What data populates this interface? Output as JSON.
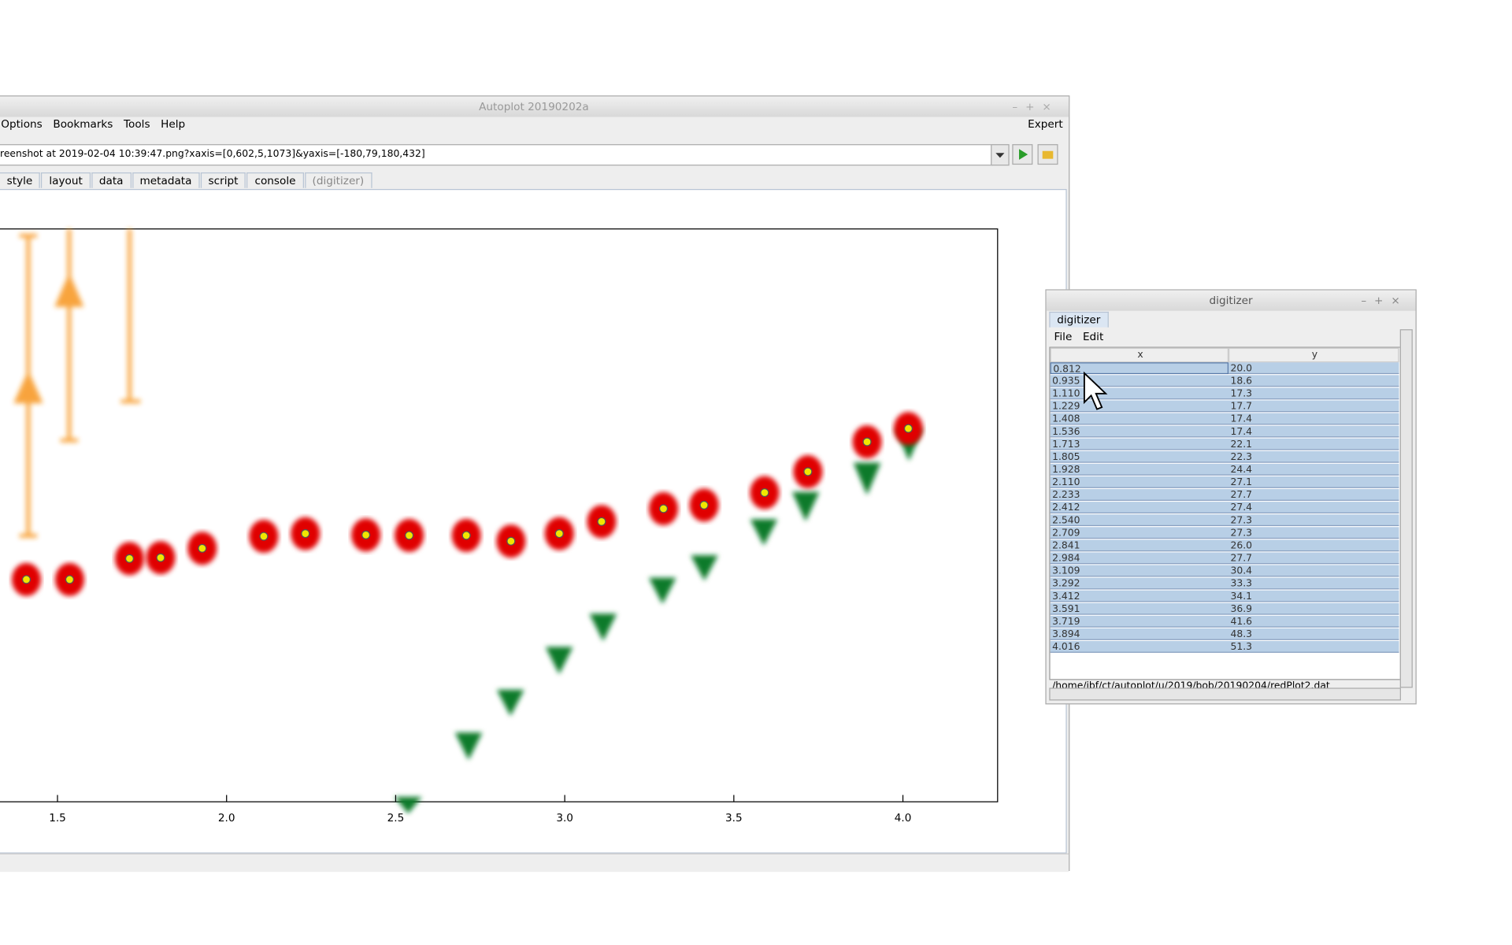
{
  "autoplot": {
    "title": "Autoplot 20190202a",
    "menu": [
      "Options",
      "Bookmarks",
      "Tools",
      "Help"
    ],
    "expert": "Expert",
    "uri": "reenshot at 2019-02-04 10:39:47.png?xaxis=[0,602,5,1073]&yaxis=[-180,79,180,432]",
    "tabs": [
      "style",
      "layout",
      "data",
      "metadata",
      "script",
      "console",
      "(digitizer)"
    ],
    "plot": {
      "xlim": [
        1.33,
        4.28
      ],
      "ylim": [
        -32.5,
        96.1
      ],
      "xticks": [
        1.5,
        {
          "value": 2,
          "label": "2.0"
        },
        2.5,
        {
          "value": 3,
          "label": "3.0"
        },
        3.5,
        {
          "value": 4,
          "label": "4.0"
        }
      ]
    }
  },
  "digitizer": {
    "title": "digitizer",
    "tab": "digitizer",
    "menu": [
      "File",
      "Edit"
    ],
    "columns": [
      "x",
      "y"
    ],
    "rows": [
      [
        "0.812",
        "20.0"
      ],
      [
        "0.935",
        "18.6"
      ],
      [
        "1.110",
        "17.3"
      ],
      [
        "1.229",
        "17.7"
      ],
      [
        "1.408",
        "17.4"
      ],
      [
        "1.536",
        "17.4"
      ],
      [
        "1.713",
        "22.1"
      ],
      [
        "1.805",
        "22.3"
      ],
      [
        "1.928",
        "24.4"
      ],
      [
        "2.110",
        "27.1"
      ],
      [
        "2.233",
        "27.7"
      ],
      [
        "2.412",
        "27.4"
      ],
      [
        "2.540",
        "27.3"
      ],
      [
        "2.709",
        "27.3"
      ],
      [
        "2.841",
        "26.0"
      ],
      [
        "2.984",
        "27.7"
      ],
      [
        "3.109",
        "30.4"
      ],
      [
        "3.292",
        "33.3"
      ],
      [
        "3.412",
        "34.1"
      ],
      [
        "3.591",
        "36.9"
      ],
      [
        "3.719",
        "41.6"
      ],
      [
        "3.894",
        "48.3"
      ],
      [
        "4.016",
        "51.3"
      ]
    ],
    "status": "/home/jbf/ct/autoplot/u/2019/bob/20190204/redPlot2.dat"
  }
}
